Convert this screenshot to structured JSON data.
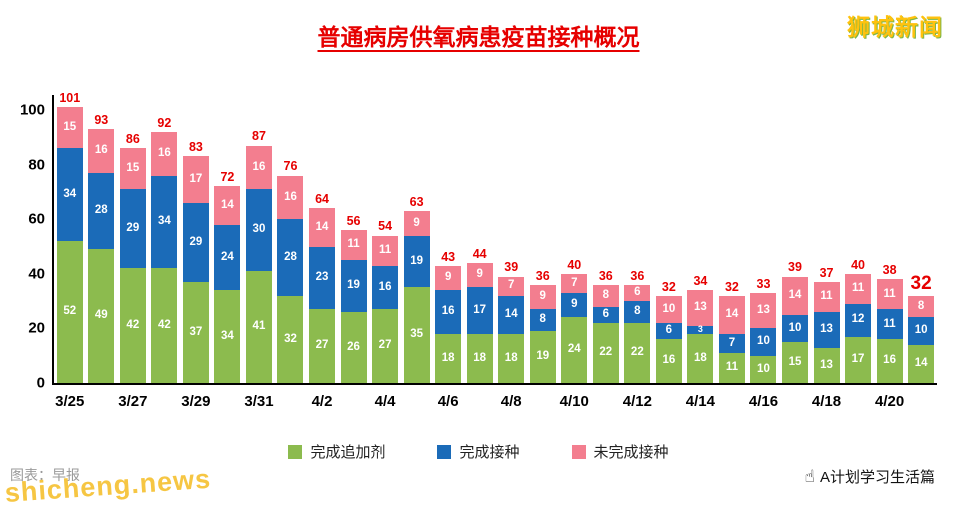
{
  "page": {
    "brand": "狮城新闻",
    "watermark": "shicheng.news",
    "credit": "图表：早报",
    "attribution": "A计划学习生活篇",
    "attribution_icon": "☝"
  },
  "chart_data": {
    "type": "bar",
    "stacked": true,
    "title": "普通病房供氧病患疫苗接种概况",
    "categories": [
      "3/25",
      "3/26",
      "3/27",
      "3/28",
      "3/29",
      "3/30",
      "3/31",
      "4/1",
      "4/2",
      "4/3",
      "4/4",
      "4/5",
      "4/6",
      "4/7",
      "4/8",
      "4/9",
      "4/10",
      "4/11",
      "4/12",
      "4/13",
      "4/14",
      "4/15",
      "4/16",
      "4/17",
      "4/18",
      "4/19",
      "4/20",
      "4/21"
    ],
    "x_tick_labels": [
      "3/25",
      "3/27",
      "3/29",
      "3/31",
      "4/2",
      "4/4",
      "4/6",
      "4/8",
      "4/10",
      "4/12",
      "4/14",
      "4/16",
      "4/18",
      "4/20"
    ],
    "series": [
      {
        "name": "完成追加剂",
        "color": "#8cbb4e",
        "values": [
          52,
          49,
          42,
          42,
          37,
          34,
          41,
          32,
          27,
          26,
          27,
          35,
          18,
          18,
          18,
          19,
          24,
          22,
          22,
          16,
          18,
          11,
          10,
          15,
          13,
          17,
          16,
          14
        ]
      },
      {
        "name": "完成接种",
        "color": "#1b6bb8",
        "values": [
          34,
          28,
          29,
          34,
          29,
          24,
          30,
          28,
          23,
          19,
          16,
          19,
          16,
          17,
          14,
          8,
          9,
          6,
          8,
          6,
          3,
          7,
          10,
          10,
          13,
          12,
          11,
          10
        ]
      },
      {
        "name": "未完成接种",
        "color": "#f37e8f",
        "values": [
          15,
          16,
          15,
          16,
          17,
          14,
          16,
          16,
          14,
          11,
          11,
          9,
          9,
          9,
          7,
          9,
          7,
          8,
          6,
          10,
          13,
          14,
          13,
          14,
          11,
          11,
          11,
          8
        ]
      }
    ],
    "totals": [
      101,
      93,
      86,
      92,
      83,
      72,
      87,
      76,
      64,
      56,
      54,
      63,
      43,
      44,
      39,
      36,
      40,
      36,
      36,
      32,
      34,
      32,
      33,
      39,
      37,
      40,
      38,
      32
    ],
    "ylim": [
      0,
      100
    ],
    "yticks": [
      0,
      20,
      40,
      60,
      80,
      100
    ],
    "legend_position": "bottom",
    "grid": false,
    "colors": {
      "title": "#e60000",
      "total_label": "#e60000",
      "brand": "#ffc20e",
      "watermark": "#f6c643"
    }
  }
}
